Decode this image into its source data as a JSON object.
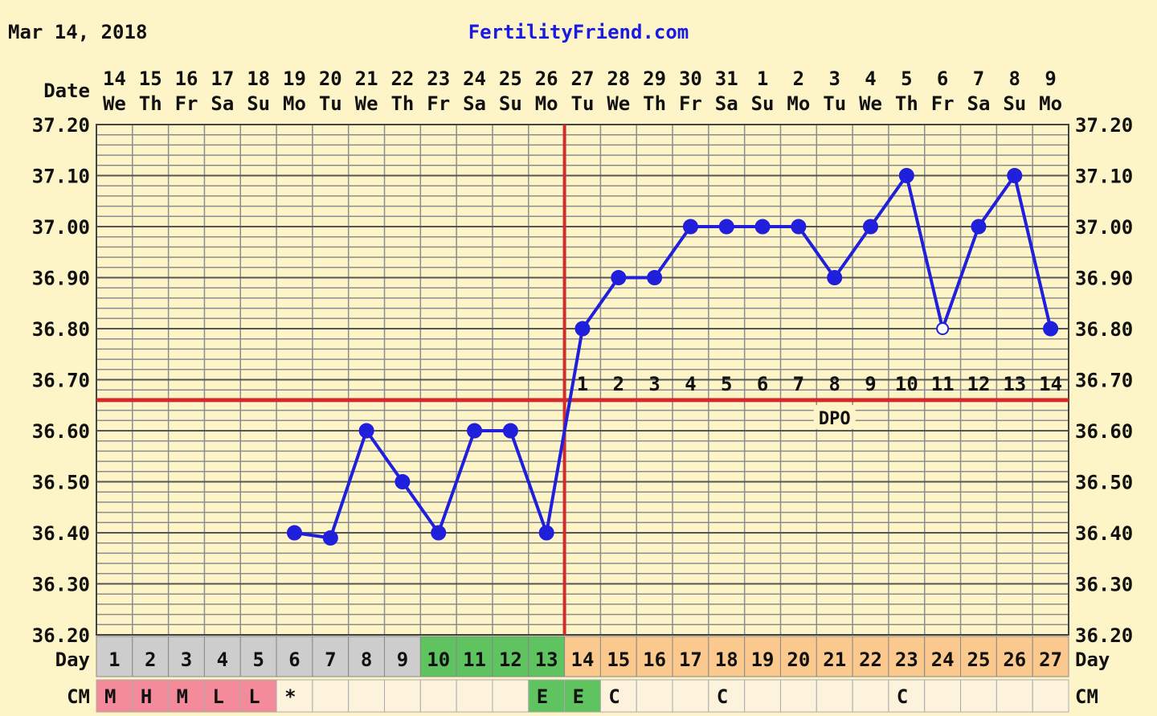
{
  "header": {
    "date": "Mar 14, 2018",
    "site": "FertilityFriend.com"
  },
  "labels": {
    "date_row": "Date",
    "day_row": "Day",
    "cm_row": "CM",
    "dpo": "DPO"
  },
  "colors": {
    "background": "#fdf5c8",
    "grid": "#8c8c8c",
    "temp_line": "#1f1fdc",
    "coverline": "#d42a2a",
    "period_cell": "#f48b9b",
    "pre_cell": "#cdcdcd",
    "fertile_cell": "#5fc35f",
    "post_cell": "#fbc98d",
    "cm_empty": "#fdf3dc",
    "site_text": "#1a1ae0"
  },
  "chart_data": {
    "type": "line",
    "dates": [
      "14",
      "15",
      "16",
      "17",
      "18",
      "19",
      "20",
      "21",
      "22",
      "23",
      "24",
      "25",
      "26",
      "27",
      "28",
      "29",
      "30",
      "31",
      "1",
      "2",
      "3",
      "4",
      "5",
      "6",
      "7",
      "8",
      "9"
    ],
    "weekdays": [
      "We",
      "Th",
      "Fr",
      "Sa",
      "Su",
      "Mo",
      "Tu",
      "We",
      "Th",
      "Fr",
      "Sa",
      "Su",
      "Mo",
      "Tu",
      "We",
      "Th",
      "Fr",
      "Sa",
      "Su",
      "Mo",
      "Tu",
      "We",
      "Th",
      "Fr",
      "Sa",
      "Su",
      "Mo"
    ],
    "cycle_days": [
      "1",
      "2",
      "3",
      "4",
      "5",
      "6",
      "7",
      "8",
      "9",
      "10",
      "11",
      "12",
      "13",
      "14",
      "15",
      "16",
      "17",
      "18",
      "19",
      "20",
      "21",
      "22",
      "23",
      "24",
      "25",
      "26",
      "27"
    ],
    "day_phase": [
      "pre",
      "pre",
      "pre",
      "pre",
      "pre",
      "pre",
      "pre",
      "pre",
      "pre",
      "fertile",
      "fertile",
      "fertile",
      "fertile",
      "post",
      "post",
      "post",
      "post",
      "post",
      "post",
      "post",
      "post",
      "post",
      "post",
      "post",
      "post",
      "post",
      "post"
    ],
    "cm": [
      "M",
      "H",
      "M",
      "L",
      "L",
      "*",
      "",
      "",
      "",
      "",
      "",
      "",
      "E",
      "E",
      "C",
      "",
      "",
      "C",
      "",
      "",
      "",
      "",
      "C",
      "",
      "",
      "",
      ""
    ],
    "cm_phase": [
      "period",
      "period",
      "period",
      "period",
      "period",
      "empty",
      "empty",
      "empty",
      "empty",
      "empty",
      "empty",
      "empty",
      "fertile",
      "fertile",
      "empty",
      "empty",
      "empty",
      "empty",
      "empty",
      "empty",
      "empty",
      "empty",
      "empty",
      "empty",
      "empty",
      "empty",
      "empty"
    ],
    "temps": [
      null,
      null,
      null,
      null,
      null,
      36.4,
      36.39,
      36.6,
      36.5,
      36.4,
      36.6,
      36.6,
      36.4,
      36.8,
      36.9,
      36.9,
      37.0,
      37.0,
      37.0,
      37.0,
      36.9,
      37.0,
      37.1,
      36.8,
      37.0,
      37.1,
      36.8
    ],
    "open_points": [
      23
    ],
    "ylim": [
      36.2,
      37.2
    ],
    "y_ticks": [
      "37.20",
      "37.10",
      "37.00",
      "36.90",
      "36.80",
      "36.70",
      "36.60",
      "36.50",
      "36.40",
      "36.30",
      "36.20"
    ],
    "coverline": 36.66,
    "ovulation_day_index": 12,
    "dpo_labels": [
      "1",
      "2",
      "3",
      "4",
      "5",
      "6",
      "7",
      "8",
      "9",
      "10",
      "11",
      "12",
      "13",
      "14"
    ],
    "dpo_start_index": 13
  }
}
